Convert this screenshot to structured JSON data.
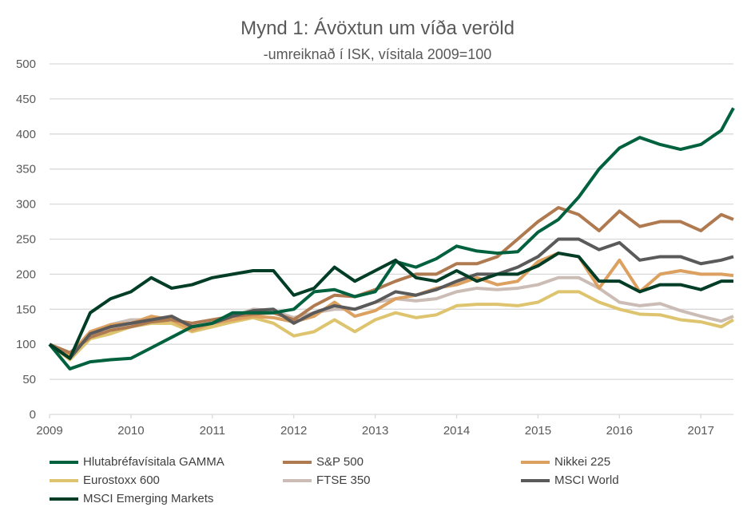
{
  "chart_data": {
    "type": "line",
    "title": "Mynd 1: Ávöxtun um víða veröld",
    "subtitle": "-umreiknað í ISK, vísitala 2009=100",
    "xlabel": "",
    "ylabel": "",
    "ylim": [
      0,
      500
    ],
    "xlim": [
      2009,
      2017.4
    ],
    "yticks": [
      "0",
      "50",
      "100",
      "150",
      "200",
      "250",
      "300",
      "350",
      "400",
      "450",
      "500"
    ],
    "xticks": [
      "2009",
      "2010",
      "2011",
      "2012",
      "2013",
      "2014",
      "2015",
      "2016",
      "2017"
    ],
    "grid": true,
    "legend_position": "bottom",
    "x": [
      2009,
      2009.25,
      2009.5,
      2009.75,
      2010,
      2010.25,
      2010.5,
      2010.75,
      2011,
      2011.25,
      2011.5,
      2011.75,
      2012,
      2012.25,
      2012.5,
      2012.75,
      2013,
      2013.25,
      2013.5,
      2013.75,
      2014,
      2014.25,
      2014.5,
      2014.75,
      2015,
      2015.25,
      2015.5,
      2015.75,
      2016,
      2016.25,
      2016.5,
      2016.75,
      2017,
      2017.25,
      2017.4
    ],
    "series": [
      {
        "name": "Hlutabréfavísitala GAMMA",
        "color": "#00613E",
        "values": [
          100,
          65,
          75,
          78,
          80,
          95,
          110,
          125,
          130,
          145,
          145,
          145,
          150,
          175,
          178,
          168,
          175,
          218,
          210,
          222,
          240,
          233,
          230,
          232,
          260,
          278,
          310,
          350,
          380,
          395,
          385,
          378,
          385,
          405,
          437
        ]
      },
      {
        "name": "S&P 500",
        "color": "#B07A50",
        "values": [
          100,
          88,
          110,
          120,
          125,
          132,
          135,
          130,
          135,
          140,
          143,
          145,
          135,
          155,
          170,
          168,
          178,
          190,
          200,
          200,
          215,
          215,
          225,
          250,
          275,
          295,
          285,
          262,
          290,
          268,
          275,
          275,
          262,
          285,
          278
        ]
      },
      {
        "name": "Nikkei 225",
        "color": "#DCA060",
        "values": [
          100,
          85,
          118,
          128,
          130,
          140,
          135,
          120,
          130,
          135,
          140,
          138,
          132,
          140,
          160,
          140,
          148,
          165,
          170,
          180,
          185,
          195,
          185,
          190,
          218,
          230,
          225,
          180,
          220,
          175,
          200,
          205,
          200,
          200,
          198
        ]
      },
      {
        "name": "Eurostoxx 600",
        "color": "#DEC46E",
        "values": [
          100,
          78,
          108,
          115,
          125,
          130,
          130,
          118,
          125,
          132,
          138,
          130,
          112,
          118,
          135,
          118,
          135,
          145,
          138,
          142,
          155,
          157,
          157,
          155,
          160,
          175,
          175,
          160,
          150,
          143,
          142,
          135,
          132,
          125,
          135
        ]
      },
      {
        "name": "FTSE 350",
        "color": "#CBBDB5",
        "values": [
          100,
          80,
          110,
          128,
          135,
          135,
          140,
          125,
          130,
          140,
          150,
          148,
          138,
          145,
          150,
          150,
          160,
          165,
          162,
          165,
          175,
          180,
          178,
          180,
          185,
          195,
          195,
          180,
          160,
          155,
          158,
          148,
          140,
          133,
          140
        ]
      },
      {
        "name": "MSCI World",
        "color": "#5A5A5A",
        "values": [
          100,
          80,
          115,
          125,
          130,
          135,
          140,
          125,
          130,
          140,
          148,
          150,
          130,
          145,
          155,
          150,
          160,
          175,
          170,
          178,
          190,
          200,
          200,
          210,
          225,
          250,
          250,
          235,
          245,
          220,
          225,
          225,
          215,
          220,
          225
        ]
      },
      {
        "name": "MSCI Emerging Markets",
        "color": "#003D26",
        "values": [
          100,
          80,
          145,
          165,
          175,
          195,
          180,
          185,
          195,
          200,
          205,
          205,
          170,
          180,
          210,
          190,
          205,
          220,
          195,
          190,
          205,
          190,
          200,
          200,
          212,
          230,
          225,
          190,
          190,
          175,
          185,
          185,
          178,
          190,
          190
        ]
      }
    ]
  }
}
